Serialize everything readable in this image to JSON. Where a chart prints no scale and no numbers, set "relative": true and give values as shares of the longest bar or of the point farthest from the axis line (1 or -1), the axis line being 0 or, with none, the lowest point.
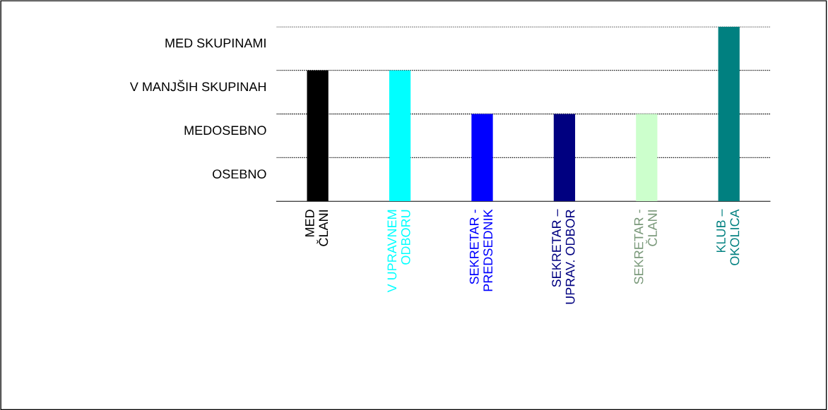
{
  "chart_data": {
    "type": "bar",
    "relative": true,
    "categories": [
      "MED\nČLANI",
      "V UPRAVNEM\nODBORU",
      "SEKRETAR -\nPREDSEDNIK",
      "SEKRETAR –\nUPRAV. ODBOR",
      "SEKRETAR -\nČLANI",
      "KLUB –\nOKOLICA"
    ],
    "values": [
      0.75,
      0.75,
      0.5,
      0.5,
      0.5,
      1
    ],
    "colors": [
      "#000000",
      "#00ffff",
      "#0000ff",
      "#000080",
      "#ccffcc",
      "#008080"
    ],
    "annotations": [
      "OSEBNO",
      "MEDOSEBNO",
      "V MANJŠIH SKUPINAH",
      "MED SKUPINAMI"
    ],
    "grid": "y"
  }
}
